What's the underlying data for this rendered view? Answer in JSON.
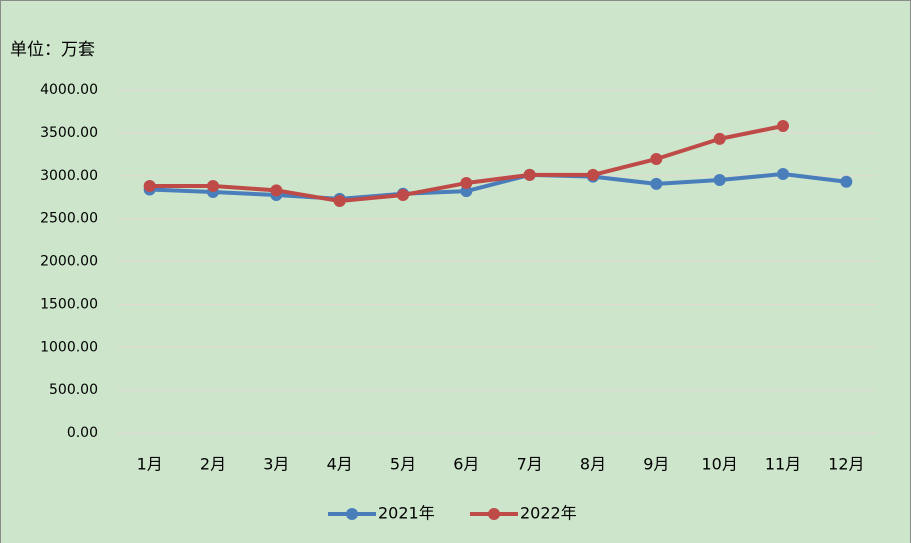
{
  "chart_data": {
    "type": "line",
    "title": "单位：万套",
    "categories": [
      "1月",
      "2月",
      "3月",
      "4月",
      "5月",
      "6月",
      "7月",
      "8月",
      "9月",
      "10月",
      "11月",
      "12月"
    ],
    "series": [
      {
        "name": "2021年",
        "color": "#4a7ebb",
        "values": [
          2840,
          2810,
          2775,
          2730,
          2790,
          2820,
          3010,
          2990,
          2905,
          2950,
          3020,
          2930
        ]
      },
      {
        "name": "2022年",
        "color": "#be4b48",
        "values": [
          2880,
          2880,
          2830,
          2705,
          2775,
          2915,
          3010,
          3010,
          3195,
          3430,
          3580,
          null
        ]
      }
    ],
    "ylim": [
      0,
      4000
    ],
    "yticks": [
      {
        "value": 0,
        "label": "0.00"
      },
      {
        "value": 500,
        "label": "500.00"
      },
      {
        "value": 1000,
        "label": "1000.00"
      },
      {
        "value": 1500,
        "label": "1500.00"
      },
      {
        "value": 2000,
        "label": "2000.00"
      },
      {
        "value": 2500,
        "label": "2500.00"
      },
      {
        "value": 3000,
        "label": "3000.00"
      },
      {
        "value": 3500,
        "label": "3500.00"
      },
      {
        "value": 4000,
        "label": "4000.00"
      }
    ],
    "grid": true,
    "legend": "bottom"
  }
}
